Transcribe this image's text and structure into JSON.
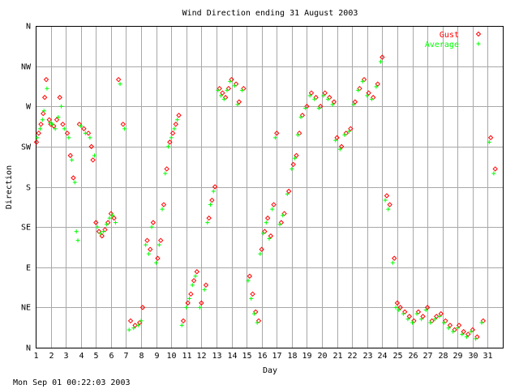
{
  "chart_data": {
    "type": "scatter",
    "title": "Wind Direction ending 31 August 2003",
    "xlabel": "Day",
    "ylabel": "Direction",
    "footer": "Mon Sep 01 00:22:03 2003",
    "xlim": [
      1,
      32
    ],
    "ylim": [
      0,
      360
    ],
    "x_ticks": [
      "1",
      "2",
      "3",
      "4",
      "5",
      "6",
      "7",
      "8",
      "9",
      "10",
      "11",
      "12",
      "13",
      "14",
      "15",
      "16",
      "17",
      "18",
      "19",
      "20",
      "21",
      "22",
      "23",
      "24",
      "25",
      "26",
      "27",
      "28",
      "29",
      "30",
      "31"
    ],
    "y_ticks": [
      {
        "label": "N",
        "value": 0
      },
      {
        "label": "NE",
        "value": 45
      },
      {
        "label": "E",
        "value": 90
      },
      {
        "label": "SE",
        "value": 135
      },
      {
        "label": "S",
        "value": 180
      },
      {
        "label": "SW",
        "value": 225
      },
      {
        "label": "W",
        "value": 270
      },
      {
        "label": "NW",
        "value": 315
      },
      {
        "label": "N",
        "value": 360
      }
    ],
    "grid": true,
    "legend_position": "top-right",
    "series": [
      {
        "name": "Gust",
        "color": "#ff0000",
        "marker": "diamond",
        "points": [
          [
            1.05,
            230
          ],
          [
            1.2,
            240
          ],
          [
            1.35,
            250
          ],
          [
            1.5,
            262
          ],
          [
            1.6,
            280
          ],
          [
            1.7,
            300
          ],
          [
            1.9,
            255
          ],
          [
            2.0,
            250
          ],
          [
            2.2,
            248
          ],
          [
            2.4,
            255
          ],
          [
            2.6,
            280
          ],
          [
            2.8,
            250
          ],
          [
            3.1,
            240
          ],
          [
            3.3,
            215
          ],
          [
            3.5,
            190
          ],
          [
            3.9,
            250
          ],
          [
            4.2,
            245
          ],
          [
            4.5,
            240
          ],
          [
            4.7,
            225
          ],
          [
            4.8,
            210
          ],
          [
            5.0,
            140
          ],
          [
            5.2,
            130
          ],
          [
            5.4,
            125
          ],
          [
            5.6,
            132
          ],
          [
            5.8,
            140
          ],
          [
            6.0,
            150
          ],
          [
            6.2,
            145
          ],
          [
            6.5,
            300
          ],
          [
            6.8,
            250
          ],
          [
            7.3,
            30
          ],
          [
            7.6,
            25
          ],
          [
            7.9,
            28
          ],
          [
            8.1,
            45
          ],
          [
            8.4,
            120
          ],
          [
            8.6,
            110
          ],
          [
            8.8,
            140
          ],
          [
            9.1,
            100
          ],
          [
            9.3,
            120
          ],
          [
            9.5,
            160
          ],
          [
            9.7,
            200
          ],
          [
            9.9,
            230
          ],
          [
            10.1,
            240
          ],
          [
            10.3,
            250
          ],
          [
            10.5,
            260
          ],
          [
            10.8,
            30
          ],
          [
            11.1,
            50
          ],
          [
            11.3,
            60
          ],
          [
            11.5,
            75
          ],
          [
            11.7,
            85
          ],
          [
            12.0,
            50
          ],
          [
            12.3,
            70
          ],
          [
            12.5,
            145
          ],
          [
            12.7,
            165
          ],
          [
            12.9,
            180
          ],
          [
            13.2,
            290
          ],
          [
            13.4,
            285
          ],
          [
            13.6,
            280
          ],
          [
            13.8,
            290
          ],
          [
            14.0,
            300
          ],
          [
            14.3,
            295
          ],
          [
            14.5,
            275
          ],
          [
            14.8,
            290
          ],
          [
            15.2,
            80
          ],
          [
            15.4,
            60
          ],
          [
            15.6,
            40
          ],
          [
            15.8,
            30
          ],
          [
            16.0,
            110
          ],
          [
            16.2,
            130
          ],
          [
            16.4,
            145
          ],
          [
            16.6,
            125
          ],
          [
            16.8,
            160
          ],
          [
            17.0,
            240
          ],
          [
            17.3,
            140
          ],
          [
            17.5,
            150
          ],
          [
            17.8,
            175
          ],
          [
            18.1,
            205
          ],
          [
            18.3,
            215
          ],
          [
            18.5,
            240
          ],
          [
            18.7,
            260
          ],
          [
            19.0,
            270
          ],
          [
            19.3,
            285
          ],
          [
            19.6,
            280
          ],
          [
            19.9,
            270
          ],
          [
            20.2,
            285
          ],
          [
            20.5,
            280
          ],
          [
            20.8,
            275
          ],
          [
            21.0,
            235
          ],
          [
            21.3,
            225
          ],
          [
            21.6,
            240
          ],
          [
            21.9,
            245
          ],
          [
            22.2,
            275
          ],
          [
            22.5,
            290
          ],
          [
            22.8,
            300
          ],
          [
            23.1,
            285
          ],
          [
            23.4,
            280
          ],
          [
            23.7,
            295
          ],
          [
            24.0,
            325
          ],
          [
            24.3,
            170
          ],
          [
            24.5,
            160
          ],
          [
            24.8,
            100
          ],
          [
            25.0,
            50
          ],
          [
            25.2,
            45
          ],
          [
            25.5,
            40
          ],
          [
            25.8,
            35
          ],
          [
            26.1,
            30
          ],
          [
            26.4,
            40
          ],
          [
            26.7,
            35
          ],
          [
            27.0,
            45
          ],
          [
            27.3,
            30
          ],
          [
            27.6,
            35
          ],
          [
            27.9,
            38
          ],
          [
            28.2,
            30
          ],
          [
            28.5,
            25
          ],
          [
            28.8,
            20
          ],
          [
            29.1,
            25
          ],
          [
            29.4,
            18
          ],
          [
            29.7,
            15
          ],
          [
            30.0,
            20
          ],
          [
            30.3,
            12
          ],
          [
            30.7,
            30
          ],
          [
            31.2,
            235
          ],
          [
            31.5,
            200
          ]
        ]
      },
      {
        "name": "Average",
        "color": "#00ff00",
        "marker": "plus",
        "points": [
          [
            1.1,
            235
          ],
          [
            1.3,
            245
          ],
          [
            1.45,
            255
          ],
          [
            1.55,
            265
          ],
          [
            1.75,
            290
          ],
          [
            1.95,
            252
          ],
          [
            2.1,
            250
          ],
          [
            2.3,
            245
          ],
          [
            2.5,
            258
          ],
          [
            2.7,
            270
          ],
          [
            2.9,
            245
          ],
          [
            3.2,
            235
          ],
          [
            3.4,
            210
          ],
          [
            3.6,
            185
          ],
          [
            3.7,
            130
          ],
          [
            3.8,
            120
          ],
          [
            4.0,
            248
          ],
          [
            4.3,
            240
          ],
          [
            4.6,
            235
          ],
          [
            4.9,
            215
          ],
          [
            5.1,
            135
          ],
          [
            5.3,
            128
          ],
          [
            5.5,
            130
          ],
          [
            5.7,
            138
          ],
          [
            5.9,
            145
          ],
          [
            6.1,
            148
          ],
          [
            6.3,
            140
          ],
          [
            6.6,
            295
          ],
          [
            6.9,
            245
          ],
          [
            7.2,
            20
          ],
          [
            7.5,
            22
          ],
          [
            7.8,
            25
          ],
          [
            8.0,
            30
          ],
          [
            8.3,
            115
          ],
          [
            8.5,
            105
          ],
          [
            8.7,
            135
          ],
          [
            9.0,
            95
          ],
          [
            9.2,
            115
          ],
          [
            9.4,
            155
          ],
          [
            9.6,
            195
          ],
          [
            9.8,
            225
          ],
          [
            10.0,
            235
          ],
          [
            10.2,
            245
          ],
          [
            10.4,
            255
          ],
          [
            10.7,
            25
          ],
          [
            11.0,
            45
          ],
          [
            11.2,
            55
          ],
          [
            11.4,
            70
          ],
          [
            11.6,
            80
          ],
          [
            11.9,
            45
          ],
          [
            12.2,
            65
          ],
          [
            12.4,
            140
          ],
          [
            12.6,
            160
          ],
          [
            12.8,
            175
          ],
          [
            13.1,
            288
          ],
          [
            13.3,
            282
          ],
          [
            13.5,
            278
          ],
          [
            13.7,
            288
          ],
          [
            13.9,
            298
          ],
          [
            14.2,
            293
          ],
          [
            14.4,
            272
          ],
          [
            14.7,
            288
          ],
          [
            15.1,
            75
          ],
          [
            15.3,
            55
          ],
          [
            15.5,
            38
          ],
          [
            15.7,
            28
          ],
          [
            15.9,
            105
          ],
          [
            16.1,
            128
          ],
          [
            16.3,
            140
          ],
          [
            16.5,
            122
          ],
          [
            16.7,
            155
          ],
          [
            16.9,
            235
          ],
          [
            17.2,
            138
          ],
          [
            17.4,
            148
          ],
          [
            17.7,
            172
          ],
          [
            18.0,
            200
          ],
          [
            18.2,
            212
          ],
          [
            18.4,
            238
          ],
          [
            18.6,
            258
          ],
          [
            18.9,
            268
          ],
          [
            19.2,
            282
          ],
          [
            19.5,
            278
          ],
          [
            19.8,
            268
          ],
          [
            20.1,
            282
          ],
          [
            20.4,
            278
          ],
          [
            20.7,
            272
          ],
          [
            20.9,
            232
          ],
          [
            21.2,
            222
          ],
          [
            21.5,
            238
          ],
          [
            21.8,
            242
          ],
          [
            22.1,
            272
          ],
          [
            22.4,
            288
          ],
          [
            22.7,
            298
          ],
          [
            23.0,
            282
          ],
          [
            23.3,
            278
          ],
          [
            23.6,
            292
          ],
          [
            23.9,
            320
          ],
          [
            24.2,
            165
          ],
          [
            24.4,
            155
          ],
          [
            24.7,
            95
          ],
          [
            24.9,
            45
          ],
          [
            25.1,
            42
          ],
          [
            25.4,
            38
          ],
          [
            25.7,
            32
          ],
          [
            26.0,
            28
          ],
          [
            26.3,
            38
          ],
          [
            26.6,
            32
          ],
          [
            26.9,
            42
          ],
          [
            27.2,
            28
          ],
          [
            27.5,
            32
          ],
          [
            27.8,
            35
          ],
          [
            28.1,
            28
          ],
          [
            28.4,
            22
          ],
          [
            28.7,
            18
          ],
          [
            29.0,
            22
          ],
          [
            29.3,
            15
          ],
          [
            29.6,
            12
          ],
          [
            29.9,
            18
          ],
          [
            30.2,
            10
          ],
          [
            30.6,
            28
          ],
          [
            31.1,
            230
          ],
          [
            31.4,
            195
          ]
        ]
      }
    ]
  }
}
